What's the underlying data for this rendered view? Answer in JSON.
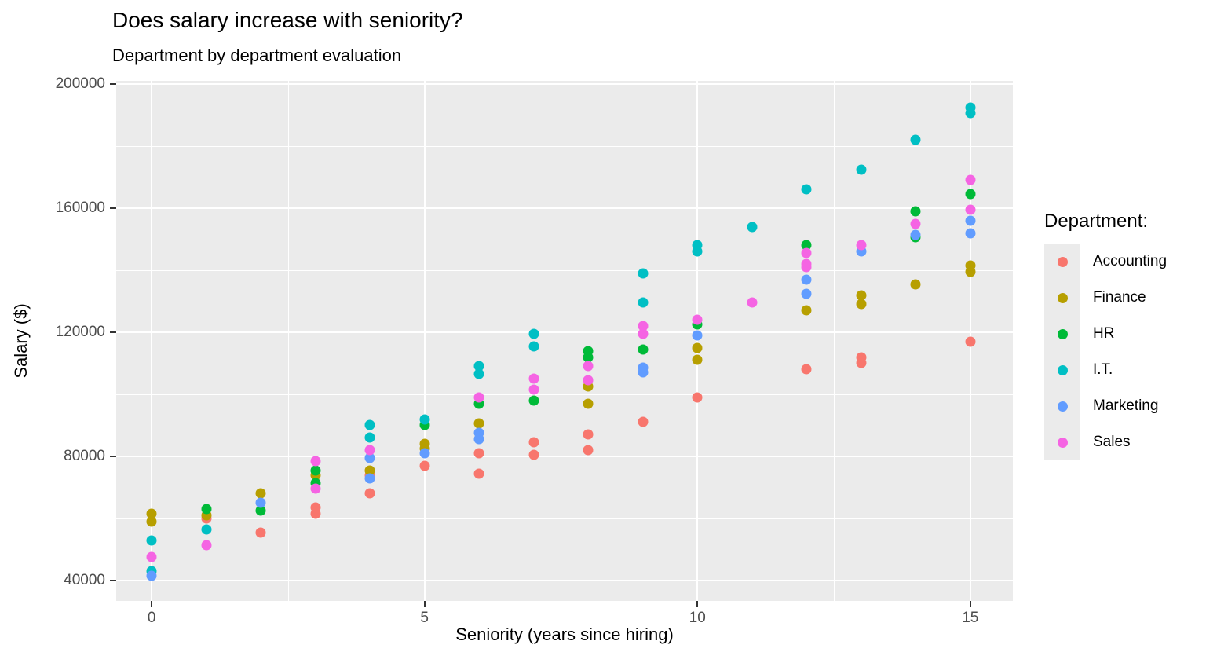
{
  "title": "Does salary increase with seniority?",
  "subtitle": "Department by department evaluation",
  "legend": {
    "title": "Department:",
    "items": [
      {
        "label": "Accounting",
        "color": "#F8766D"
      },
      {
        "label": "Finance",
        "color": "#B79F00"
      },
      {
        "label": "HR",
        "color": "#00BA38"
      },
      {
        "label": "I.T.",
        "color": "#00BFC4"
      },
      {
        "label": "Marketing",
        "color": "#619CFF"
      },
      {
        "label": "Sales",
        "color": "#F564E3"
      }
    ]
  },
  "colors": {
    "page_bg": "#FFFFFF",
    "panel_bg": "#EBEBEB",
    "grid": "#FFFFFF",
    "axis_text": "#4D4D4D",
    "title_text": "#000000",
    "tick_mark": "#333333",
    "legend_key_bg": "#EBEBEB"
  },
  "chart_data": {
    "type": "scatter",
    "title": "Does salary increase with seniority?",
    "subtitle": "Department by department evaluation",
    "xlabel": "Seniority (years since hiring)",
    "ylabel": "Salary ($)",
    "xlim": [
      -0.65,
      15.78
    ],
    "ylim": [
      33400,
      201000
    ],
    "x_ticks": [
      0,
      5,
      10,
      15
    ],
    "x_minor_ticks": [
      2.5,
      7.5,
      12.5
    ],
    "y_ticks": [
      40000,
      80000,
      120000,
      160000,
      200000
    ],
    "y_minor_ticks": [
      60000,
      100000,
      140000,
      180000
    ],
    "grid": true,
    "legend_title": "Department:",
    "legend_position": "right",
    "series": [
      {
        "name": "Accounting",
        "color": "#F8766D",
        "points": [
          [
            1,
            60000
          ],
          [
            2,
            55500
          ],
          [
            3,
            63500
          ],
          [
            3,
            61500
          ],
          [
            4,
            74000
          ],
          [
            4,
            68000
          ],
          [
            5,
            77000
          ],
          [
            6,
            81000
          ],
          [
            6,
            74500
          ],
          [
            7,
            84500
          ],
          [
            7,
            80500
          ],
          [
            8,
            87000
          ],
          [
            8,
            82000
          ],
          [
            9,
            91000
          ],
          [
            10,
            99000
          ],
          [
            12,
            108000
          ],
          [
            13,
            112000
          ],
          [
            13,
            110000
          ],
          [
            15,
            117000
          ]
        ]
      },
      {
        "name": "Finance",
        "color": "#B79F00",
        "points": [
          [
            0,
            61500
          ],
          [
            0,
            59000
          ],
          [
            1,
            61000
          ],
          [
            2,
            68000
          ],
          [
            3,
            74000
          ],
          [
            4,
            75500
          ],
          [
            5,
            84000
          ],
          [
            5,
            82500
          ],
          [
            6,
            90500
          ],
          [
            8,
            102500
          ],
          [
            8,
            97000
          ],
          [
            10,
            115000
          ],
          [
            10,
            111000
          ],
          [
            12,
            127000
          ],
          [
            13,
            132000
          ],
          [
            13,
            129000
          ],
          [
            14,
            135500
          ],
          [
            15,
            141500
          ],
          [
            15,
            139500
          ]
        ]
      },
      {
        "name": "HR",
        "color": "#00BA38",
        "points": [
          [
            1,
            63000
          ],
          [
            2,
            62500
          ],
          [
            3,
            75500
          ],
          [
            3,
            71500
          ],
          [
            5,
            90000
          ],
          [
            6,
            97000
          ],
          [
            7,
            98000
          ],
          [
            8,
            114000
          ],
          [
            8,
            112000
          ],
          [
            9,
            114500
          ],
          [
            10,
            122500
          ],
          [
            12,
            148000
          ],
          [
            14,
            159000
          ],
          [
            14,
            150500
          ],
          [
            15,
            164500
          ]
        ]
      },
      {
        "name": "I.T.",
        "color": "#00BFC4",
        "points": [
          [
            0,
            53000
          ],
          [
            0,
            43000
          ],
          [
            1,
            56500
          ],
          [
            4,
            90000
          ],
          [
            4,
            86000
          ],
          [
            5,
            92000
          ],
          [
            6,
            109000
          ],
          [
            6,
            106500
          ],
          [
            7,
            119500
          ],
          [
            7,
            115500
          ],
          [
            9,
            139000
          ],
          [
            9,
            129500
          ],
          [
            10,
            148000
          ],
          [
            10,
            146000
          ],
          [
            11,
            154000
          ],
          [
            12,
            166000
          ],
          [
            13,
            172500
          ],
          [
            14,
            182000
          ],
          [
            15,
            192500
          ],
          [
            15,
            190500
          ]
        ]
      },
      {
        "name": "Marketing",
        "color": "#619CFF",
        "points": [
          [
            0,
            41500
          ],
          [
            2,
            65000
          ],
          [
            4,
            79500
          ],
          [
            4,
            73000
          ],
          [
            5,
            81000
          ],
          [
            6,
            87500
          ],
          [
            6,
            85500
          ],
          [
            9,
            108500
          ],
          [
            9,
            107000
          ],
          [
            10,
            119000
          ],
          [
            12,
            137000
          ],
          [
            12,
            132500
          ],
          [
            13,
            146000
          ],
          [
            14,
            151500
          ],
          [
            15,
            156000
          ],
          [
            15,
            152000
          ]
        ]
      },
      {
        "name": "Sales",
        "color": "#F564E3",
        "points": [
          [
            0,
            47500
          ],
          [
            1,
            51500
          ],
          [
            3,
            78500
          ],
          [
            3,
            69500
          ],
          [
            4,
            82000
          ],
          [
            6,
            99000
          ],
          [
            7,
            105000
          ],
          [
            7,
            101500
          ],
          [
            8,
            109000
          ],
          [
            8,
            104500
          ],
          [
            9,
            122000
          ],
          [
            9,
            119500
          ],
          [
            10,
            124000
          ],
          [
            11,
            129500
          ],
          [
            12,
            145500
          ],
          [
            12,
            142000
          ],
          [
            12,
            141000
          ],
          [
            13,
            148000
          ],
          [
            14,
            155000
          ],
          [
            15,
            169000
          ],
          [
            15,
            159500
          ]
        ]
      }
    ]
  }
}
